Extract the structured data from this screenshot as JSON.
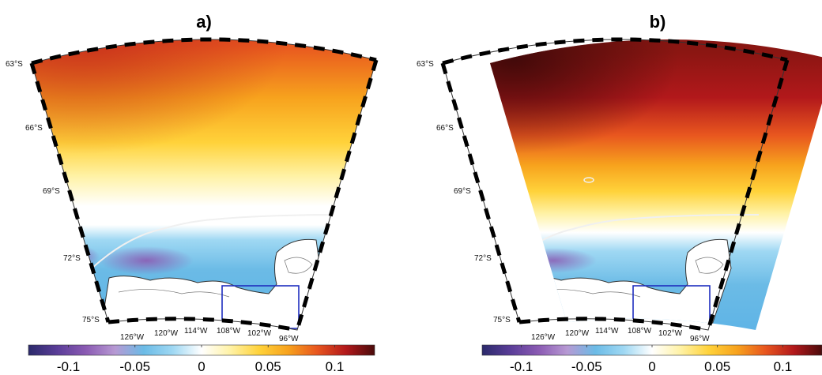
{
  "panels": [
    {
      "id": "a",
      "title": "a)",
      "lat_labels": [
        "63°S",
        "66°S",
        "69°S",
        "72°S",
        "75°S"
      ],
      "lon_labels": [
        "126°W",
        "120°W",
        "114°W",
        "108°W",
        "102°W",
        "96°W"
      ]
    },
    {
      "id": "b",
      "title": "b)",
      "lat_labels": [
        "63°S",
        "66°S",
        "69°S",
        "72°S",
        "75°S"
      ],
      "lon_labels": [
        "126°W",
        "120°W",
        "114°W",
        "108°W",
        "102°W",
        "96°W"
      ]
    }
  ],
  "colorbar": {
    "ticks": [
      "-0.1",
      "-0.05",
      "0",
      "0.05",
      "0.1"
    ],
    "tick_values": [
      -0.1,
      -0.05,
      0,
      0.05,
      0.1
    ],
    "range": [
      -0.13,
      0.13
    ],
    "colors": [
      "#2b2a6b",
      "#5a3d98",
      "#8b5bb3",
      "#b799d3",
      "#6bbbe6",
      "#9fd8f3",
      "#ffffff",
      "#fff2a6",
      "#ffd23a",
      "#f7a21d",
      "#e8561f",
      "#b2181b",
      "#4a0b0b"
    ]
  },
  "colors": {
    "box": "#1f2fbf",
    "coast": "#333333",
    "isoline": "#f0f0f0"
  }
}
